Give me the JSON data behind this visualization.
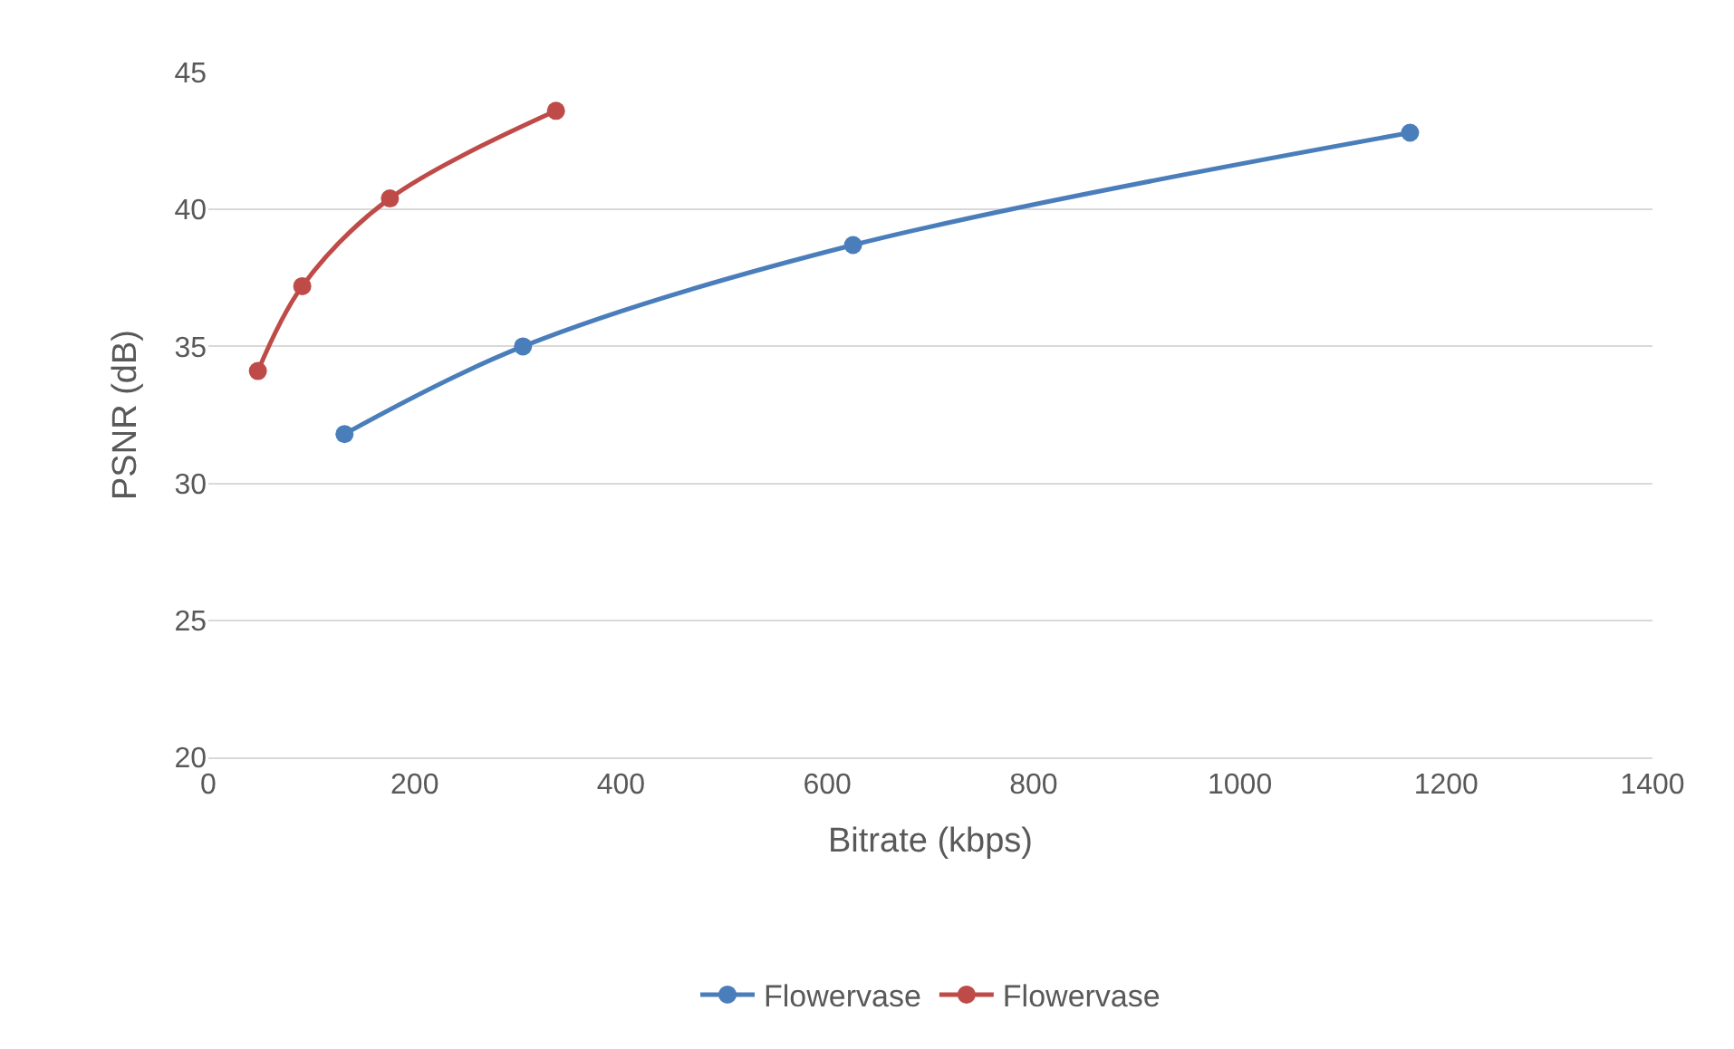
{
  "chart_data": {
    "type": "line",
    "xlabel": "Bitrate (kbps)",
    "ylabel": "PSNR (dB)",
    "xlim": [
      0,
      1400
    ],
    "xticks": [
      0,
      200,
      400,
      600,
      800,
      1000,
      1200,
      1400
    ],
    "ylim": [
      20,
      45
    ],
    "yticks": [
      20,
      25,
      30,
      35,
      40,
      45
    ],
    "grid": "y",
    "legend": "bottom",
    "marker": "circle",
    "line_style": "solid",
    "series": [
      {
        "name": "Flowervase",
        "color": "#4a7ebb",
        "x": [
          132,
          305,
          625,
          1165
        ],
        "values": [
          31.8,
          35.0,
          38.7,
          42.8
        ]
      },
      {
        "name": "Flowervase",
        "color": "#be4b48",
        "x": [
          48,
          91,
          176,
          337
        ],
        "values": [
          34.1,
          37.2,
          40.4,
          43.6
        ]
      }
    ]
  }
}
